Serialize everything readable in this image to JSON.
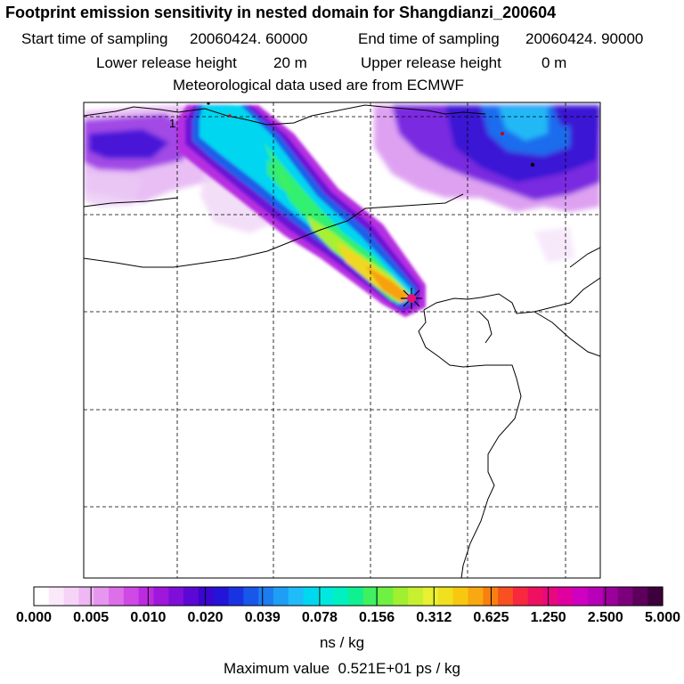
{
  "title": "Footprint emission sensitivity in nested domain for Shangdianzi_200604",
  "start_time_label": "Start time of sampling",
  "start_time_value": "20060424. 60000",
  "end_time_label": "End time of sampling",
  "end_time_value": "20060424. 90000",
  "lower_height_label": "Lower release height",
  "lower_height_value": "20 m",
  "upper_height_label": "Upper release height",
  "upper_height_value": "0 m",
  "met_data": "Meteorological data used are from ECMWF",
  "map_label_1": "1",
  "colorbar": {
    "labels": [
      "0.000",
      "0.005",
      "0.010",
      "0.020",
      "0.039",
      "0.078",
      "0.156",
      "0.312",
      "0.625",
      "1.250",
      "2.500",
      "5.000"
    ],
    "units": "ns / kg",
    "colors": [
      "#ffffff",
      "#fbe9fb",
      "#f6d4f8",
      "#efb7f4",
      "#e796ef",
      "#dd6fe8",
      "#cf49e4",
      "#bc2be0",
      "#a017dc",
      "#7f0fd8",
      "#5b08d4",
      "#3a06d0",
      "#2413d8",
      "#1a33e2",
      "#1857ea",
      "#1c7cf0",
      "#1f9ef5",
      "#20bcf8",
      "#00d8f0",
      "#00e8e0",
      "#00f0c0",
      "#10f090",
      "#40f060",
      "#70f040",
      "#a0f030",
      "#c8f030",
      "#e8f030",
      "#f0e020",
      "#f8c810",
      "#f8a810",
      "#f88010",
      "#f85020",
      "#f82840",
      "#f01060",
      "#e80880",
      "#e000a0",
      "#d000c0",
      "#b800b8",
      "#9c009c",
      "#7c007c",
      "#5c005c",
      "#3c003c"
    ]
  },
  "max_value_label": "Maximum value",
  "max_value": "0.521E+01 ps / kg",
  "receptor_name": "Shangdianzi"
}
